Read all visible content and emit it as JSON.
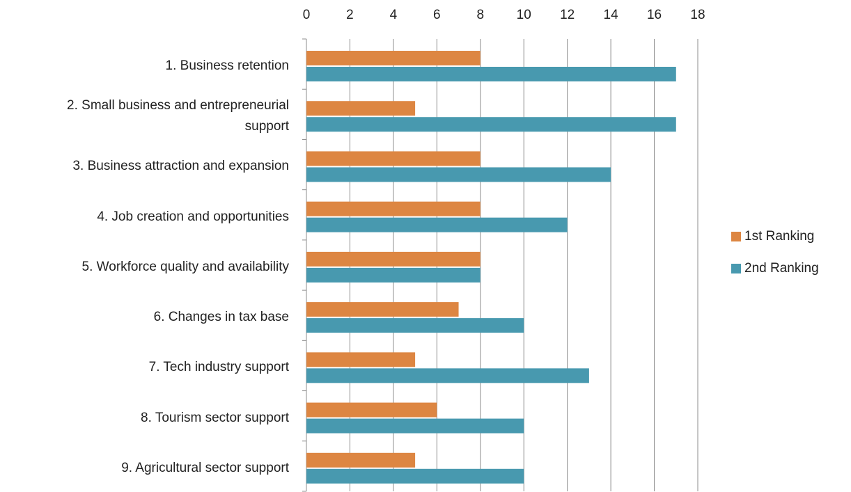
{
  "chart_data": {
    "type": "bar",
    "orientation": "horizontal",
    "categories": [
      "1. Business retention",
      "2. Small business and entrepreneurial\nsupport",
      "3. Business attraction and expansion",
      "4. Job creation and opportunities",
      "5. Workforce quality and availability",
      "6. Changes in tax base",
      "7. Tech industry support",
      "8. Tourism sector support",
      "9. Agricultural sector support"
    ],
    "series": [
      {
        "name": "1st Ranking",
        "color": "#dd8642",
        "values": [
          8,
          5,
          8,
          8,
          8,
          7,
          5,
          6,
          5
        ]
      },
      {
        "name": "2nd Ranking",
        "color": "#4899af",
        "values": [
          17,
          17,
          14,
          12,
          8,
          10,
          13,
          10,
          10
        ]
      }
    ],
    "xlim": [
      0,
      18
    ],
    "xticks": [
      0,
      2,
      4,
      6,
      8,
      10,
      12,
      14,
      16,
      18
    ],
    "grid": true,
    "legend": "right"
  }
}
